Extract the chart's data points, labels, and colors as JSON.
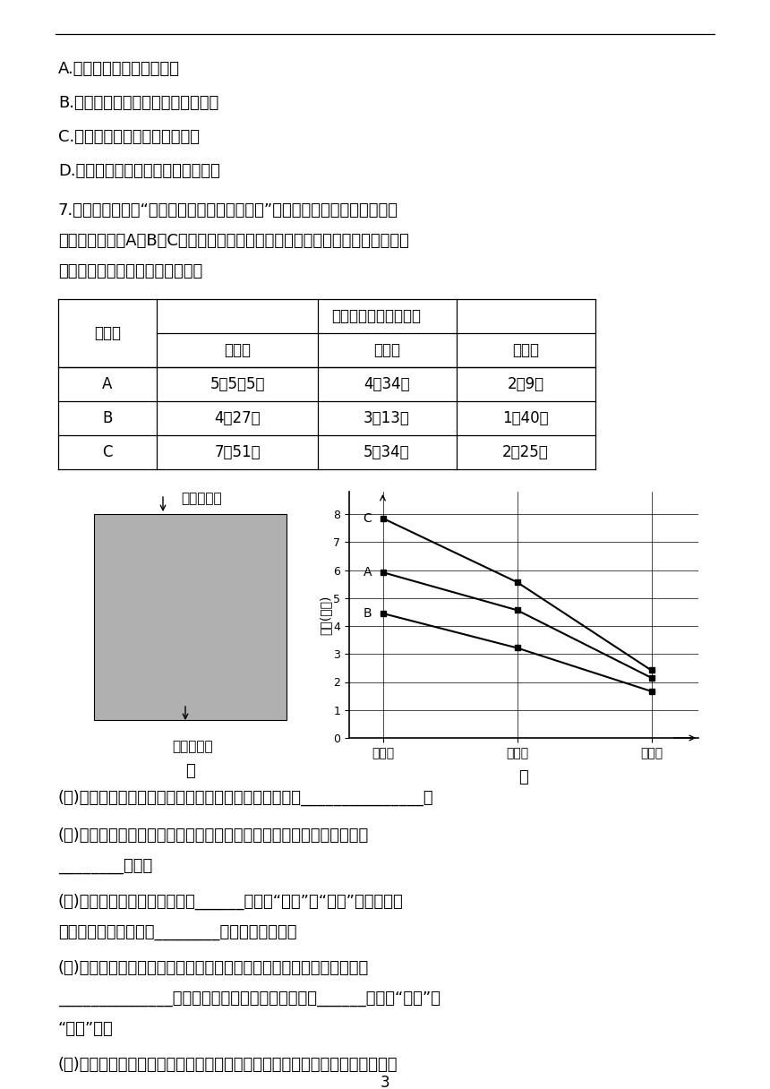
{
  "background_color": "#ffffff",
  "options": [
    "A.飞蛾扑火是后天学习行为",
    "B.后天学习行为一旦形成就不会改变",
    "C.后天学习行为与遗传因素无关",
    "D.先天性行为是动物生存必不可少的"
  ],
  "q7_lines": [
    "7.某兴趣小组开展“训练小白鼠走迷宫获取食物”的探究活动：选取三只一天未",
    "进食的小白鼠（A、B、C）分别走同一个迷宫（如图甲），在相同环境条件下，",
    "测得如下表所示的数据。请分析："
  ],
  "table_data": [
    [
      "A",
      "5分5祝5秒",
      "4分34秒",
      "2分9秒"
    ],
    [
      "B",
      "4分27秒",
      "3分13秒",
      "1分40秒"
    ],
    [
      "C",
      "7分51秒",
      "5分34秒",
      "2分25秒"
    ]
  ],
  "maze_label_top": "出口放食物",
  "maze_label_bottom": "人口小白鼠",
  "fig_label_jia": "甲",
  "fig_label_yi": "乙",
  "chart_ylabel": "时间(分钟)",
  "chart_xticks": [
    "第一次",
    "第二次",
    "第三次"
  ],
  "series_A": [
    5.917,
    4.567,
    2.15
  ],
  "series_B": [
    4.45,
    3.217,
    1.667
  ],
  "series_C": [
    7.85,
    5.567,
    2.417
  ],
  "q1": "(１)根据本实验，你认为该兴趣小组提出的问题可能是：_______________？",
  "q2a": "(２)从行为获得途径上看，小白鼠通过训练走迷宫获取食物的行为，属于",
  "q2b": "________行为。",
  "q3a": "(３)三只小白鼠找到食物的时间______（选填“相同”或“不同”），说明此",
  "q3b": "类行为的获得是建立在________因素的基础上的。",
  "q4a": "(４)根据图乙曲线，发现三只小白鼠获取食物的三次时间有共同规律，即",
  "q4b": "______________，可见此类行为可以通过训练得到______（选填“强化”或",
  "q4c": "“弱化”）。",
  "q5": "(５)在上述实验中，若把小白鼠换成蝶蟂，蝶蟂难以经过短时间训练获取食物，",
  "page_number": "3",
  "table_h1_mouse": "小白鼠",
  "table_h1_time": "小白鼠找到食物的时间",
  "table_h2": [
    "第一次",
    "第二次",
    "第三次"
  ]
}
